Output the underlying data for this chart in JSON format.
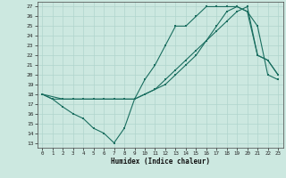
{
  "xlabel": "Humidex (Indice chaleur)",
  "background_color": "#cce8e0",
  "grid_color": "#b0d4cc",
  "line_color": "#1a6e60",
  "xlim": [
    -0.5,
    23.5
  ],
  "ylim": [
    12.5,
    27.5
  ],
  "yticks": [
    13,
    14,
    15,
    16,
    17,
    18,
    19,
    20,
    21,
    22,
    23,
    24,
    25,
    26,
    27
  ],
  "xticks": [
    0,
    1,
    2,
    3,
    4,
    5,
    6,
    7,
    8,
    9,
    10,
    11,
    12,
    13,
    14,
    15,
    16,
    17,
    18,
    19,
    20,
    21,
    22,
    23
  ],
  "line1_x": [
    0,
    1,
    2,
    3,
    4,
    5,
    6,
    7,
    8,
    9,
    10,
    11,
    12,
    13,
    14,
    15,
    16,
    17,
    18,
    19,
    20,
    21,
    22,
    23
  ],
  "line1_y": [
    18.0,
    17.5,
    16.7,
    16.0,
    15.5,
    14.5,
    14.0,
    13.0,
    14.5,
    17.5,
    19.5,
    21.0,
    23.0,
    25.0,
    25.0,
    26.0,
    27.0,
    27.0,
    27.0,
    27.0,
    26.5,
    22.0,
    21.5,
    20.0
  ],
  "line2_x": [
    0,
    2,
    3,
    4,
    5,
    6,
    7,
    8,
    9,
    10,
    11,
    12,
    13,
    14,
    15,
    16,
    17,
    18,
    19,
    20,
    21,
    22,
    23
  ],
  "line2_y": [
    18.0,
    17.5,
    17.5,
    17.5,
    17.5,
    17.5,
    17.5,
    17.5,
    17.5,
    18.0,
    18.5,
    19.5,
    20.5,
    21.5,
    22.5,
    23.5,
    24.5,
    25.5,
    26.5,
    27.0,
    22.0,
    21.5,
    20.0
  ],
  "line3_x": [
    0,
    1,
    2,
    3,
    4,
    5,
    6,
    7,
    8,
    9,
    10,
    11,
    12,
    13,
    14,
    15,
    16,
    17,
    18,
    19,
    20,
    21,
    22,
    23
  ],
  "line3_y": [
    18.0,
    17.5,
    17.5,
    17.5,
    17.5,
    17.5,
    17.5,
    17.5,
    17.5,
    17.5,
    18.0,
    18.5,
    19.0,
    20.0,
    21.0,
    22.0,
    23.5,
    25.0,
    26.5,
    27.0,
    26.5,
    25.0,
    20.0,
    19.5
  ]
}
